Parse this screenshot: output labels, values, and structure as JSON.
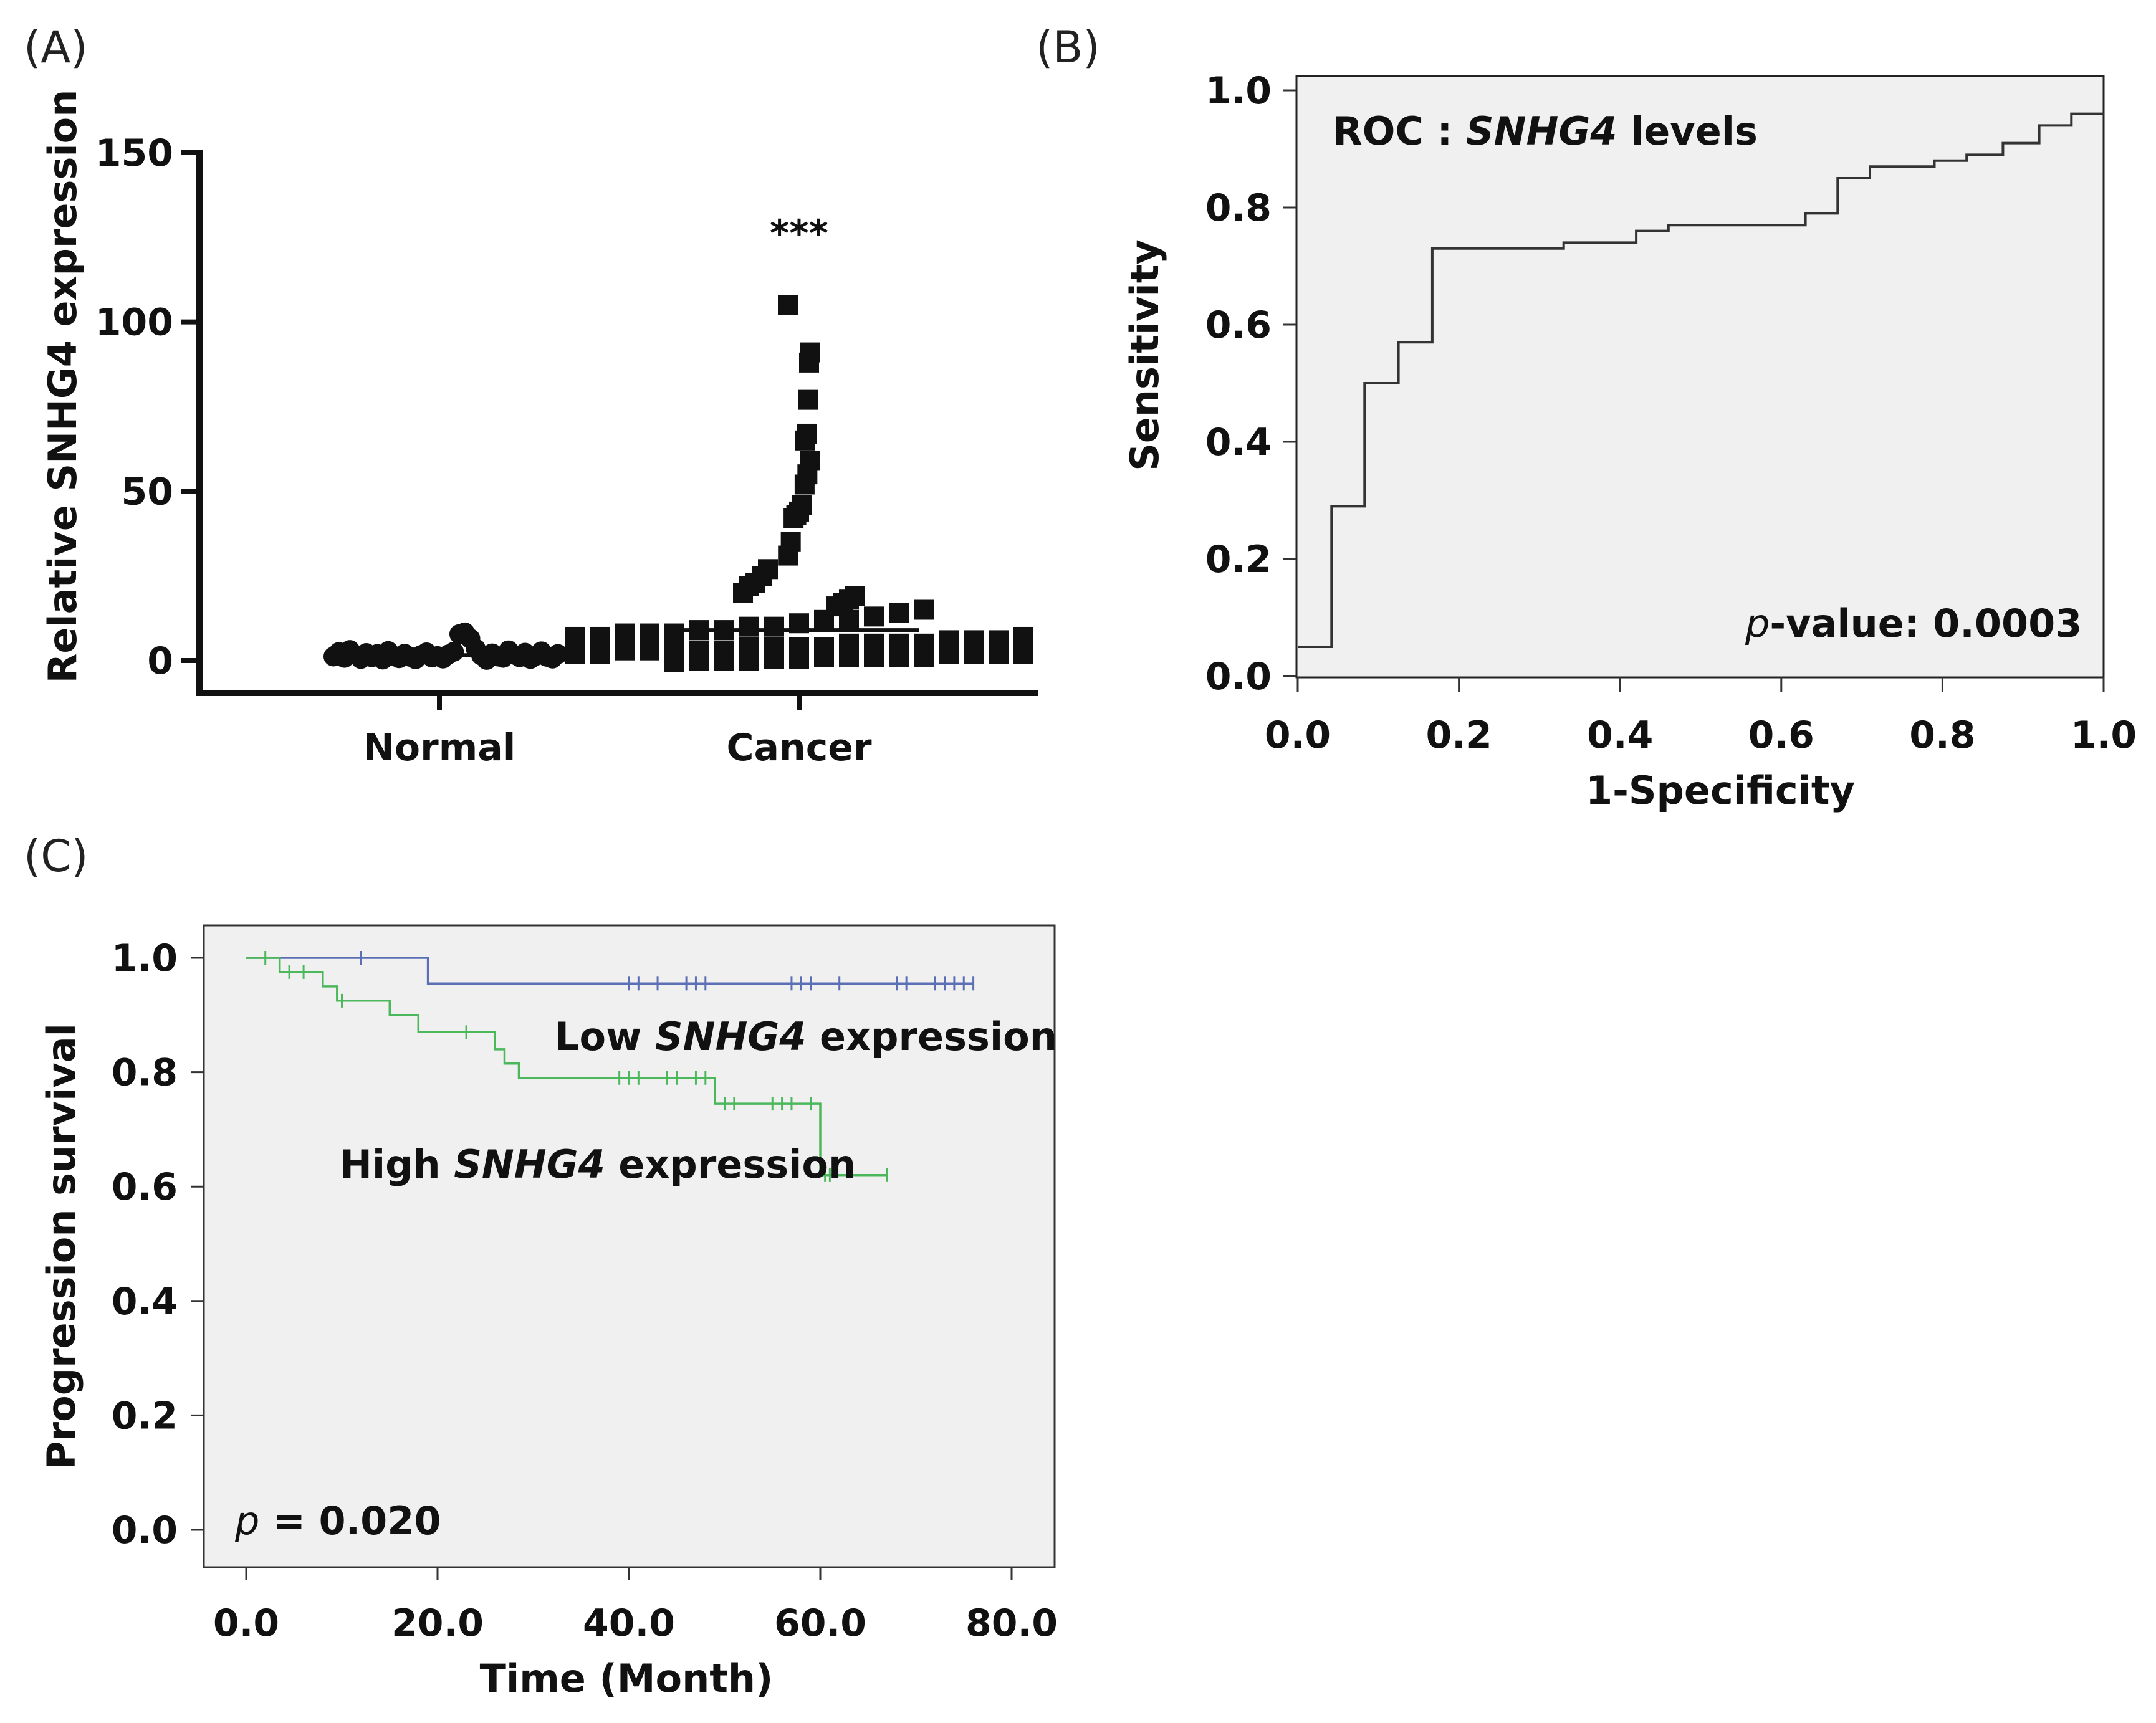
{
  "panels": {
    "a": {
      "label": "(A)"
    },
    "b": {
      "label": "(B)"
    },
    "c": {
      "label": "(C)"
    }
  },
  "chart_data": [
    {
      "id": "A",
      "type": "scatter",
      "title": "",
      "xlabel": "",
      "ylabel": "Relative SNHG4 expression",
      "categories": [
        "Normal",
        "Cancer"
      ],
      "ylim": [
        -10,
        150
      ],
      "yticks": [
        0,
        50,
        100,
        150
      ],
      "significance": "***",
      "series": [
        {
          "name": "Normal",
          "marker": "circle",
          "values": [
            1.2,
            2.5,
            0.8,
            3.1,
            1.7,
            0.5,
            2.2,
            1.0,
            1.9,
            0.3,
            2.8,
            1.4,
            0.7,
            2.0,
            1.1,
            0.4,
            1.6,
            2.4,
            0.9,
            1.3,
            0.6,
            1.8,
            2.6,
            7.8,
            8.3,
            6.5,
            3.5,
            1.5,
            0.2,
            2.1,
            1.2,
            0.8,
            3.0,
            1.7,
            1.0,
            2.3,
            0.5,
            1.4,
            2.7,
            1.1,
            0.6,
            1.9
          ]
        },
        {
          "name": "Cancer",
          "marker": "square",
          "values": [
            105,
            91,
            88,
            77,
            67,
            65,
            59,
            55,
            52,
            46,
            44,
            43,
            42,
            35,
            31,
            27,
            25,
            23,
            22,
            20,
            19,
            18,
            17,
            16,
            15,
            14,
            13,
            12,
            12,
            11,
            10,
            10,
            9,
            9,
            8,
            8,
            8,
            7,
            7,
            7,
            6,
            6,
            6,
            5,
            5,
            5,
            5,
            4,
            4,
            4,
            4,
            3,
            3,
            3,
            3,
            3,
            2,
            2,
            2,
            2,
            2,
            2,
            1,
            1,
            1,
            1,
            1,
            0.5,
            0.5,
            0,
            0,
            0,
            -0.5
          ],
          "mean_line": 9
        }
      ]
    },
    {
      "id": "B",
      "type": "line",
      "title": "ROC : SNHG4 levels",
      "title_parts": [
        "ROC : ",
        "SNHG4",
        " levels"
      ],
      "xlabel": "1-Specificity",
      "ylabel": "Sensitivity",
      "xlim": [
        0,
        1
      ],
      "ylim": [
        0,
        1
      ],
      "ticks": [
        "0.0",
        "0.2",
        "0.4",
        "0.6",
        "0.8",
        "1.0"
      ],
      "annotation_parts": [
        "p",
        "-value: 0.0003"
      ],
      "series": [
        {
          "name": "ROC",
          "x": [
            0,
            0.042,
            0.042,
            0.083,
            0.083,
            0.125,
            0.125,
            0.167,
            0.167,
            0.33,
            0.33,
            0.42,
            0.42,
            0.46,
            0.46,
            0.63,
            0.63,
            0.67,
            0.67,
            0.71,
            0.71,
            0.79,
            0.79,
            0.83,
            0.83,
            0.875,
            0.875,
            0.92,
            0.92,
            0.96,
            0.96,
            1.0
          ],
          "y": [
            0.05,
            0.05,
            0.29,
            0.29,
            0.5,
            0.5,
            0.57,
            0.57,
            0.73,
            0.73,
            0.74,
            0.74,
            0.76,
            0.76,
            0.77,
            0.77,
            0.79,
            0.79,
            0.85,
            0.85,
            0.87,
            0.87,
            0.88,
            0.88,
            0.89,
            0.89,
            0.91,
            0.91,
            0.94,
            0.94,
            0.96,
            0.96
          ]
        }
      ]
    },
    {
      "id": "C",
      "type": "line",
      "title": "",
      "xlabel": "Time (Month)",
      "ylabel": "Progression survival",
      "xlim": [
        -5,
        84
      ],
      "ylim": [
        -0.02,
        1.05
      ],
      "xticks": [
        "0.0",
        "20.0",
        "40.0",
        "60.0",
        "80.0"
      ],
      "yticks": [
        "0.0",
        "0.2",
        "0.4",
        "0.6",
        "0.8",
        "1.0"
      ],
      "annotation_parts": [
        "p",
        " = 0.020"
      ],
      "series": [
        {
          "name": "Low SNHG4 expression",
          "label_parts": [
            "Low ",
            "SNHG4",
            " expression"
          ],
          "color": "#5b6fb5",
          "x": [
            0,
            19,
            19,
            76
          ],
          "y": [
            1.0,
            1.0,
            0.955,
            0.955
          ],
          "censored_x": [
            12,
            40,
            41,
            43,
            46,
            47,
            48,
            57,
            58,
            59,
            62,
            68,
            69,
            72,
            73,
            74,
            75,
            76
          ],
          "censored_y": [
            1.0,
            0.955,
            0.955,
            0.955,
            0.955,
            0.955,
            0.955,
            0.955,
            0.955,
            0.955,
            0.955,
            0.955,
            0.955,
            0.955,
            0.955,
            0.955,
            0.955,
            0.955
          ]
        },
        {
          "name": "High SNHG4 expression",
          "label_parts": [
            "High ",
            "SNHG4",
            " expression"
          ],
          "color": "#4cb85c",
          "x": [
            0,
            3.5,
            3.5,
            8,
            8,
            9.5,
            9.5,
            15,
            15,
            18,
            18,
            26,
            26,
            27,
            27,
            28.5,
            28.5,
            49,
            49,
            60,
            60,
            67
          ],
          "y": [
            1.0,
            1.0,
            0.975,
            0.975,
            0.95,
            0.95,
            0.925,
            0.925,
            0.9,
            0.9,
            0.87,
            0.87,
            0.84,
            0.84,
            0.815,
            0.815,
            0.79,
            0.79,
            0.745,
            0.745,
            0.62,
            0.62
          ],
          "censored_x": [
            2,
            4.5,
            6,
            10,
            23,
            39,
            40,
            41,
            44,
            45,
            47,
            48,
            50,
            51,
            55,
            56,
            57,
            59,
            60.5,
            61,
            67
          ],
          "censored_y": [
            1.0,
            0.975,
            0.975,
            0.925,
            0.87,
            0.79,
            0.79,
            0.79,
            0.79,
            0.79,
            0.79,
            0.79,
            0.745,
            0.745,
            0.745,
            0.745,
            0.745,
            0.745,
            0.62,
            0.62,
            0.62
          ]
        }
      ]
    }
  ]
}
